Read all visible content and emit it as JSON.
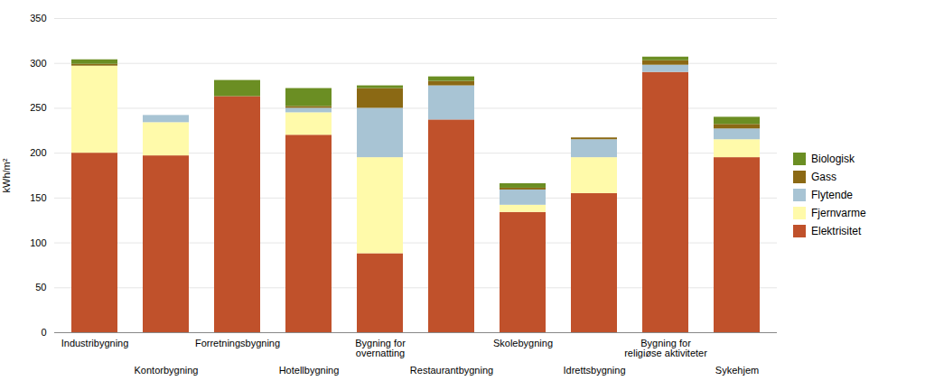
{
  "chart_data": {
    "type": "bar",
    "stacked": true,
    "ylabel": "kWh/m²",
    "categories": [
      "Industribygning",
      "Kontorbygning",
      "Forretningsbygning",
      "Hotellbygning",
      "Bygning for\novernatting",
      "Restaurantbygning",
      "Skolebygning",
      "Idrettsbygning",
      "Bygning for\nreligiøse aktiviteter",
      "Sykehjem"
    ],
    "series": [
      {
        "name": "Elektrisitet",
        "color": "#c0512b",
        "values": [
          200,
          197,
          263,
          220,
          88,
          237,
          134,
          155,
          290,
          195
        ]
      },
      {
        "name": "Fjernvarme",
        "color": "#fffaaa",
        "values": [
          97,
          37,
          0,
          25,
          107,
          0,
          8,
          40,
          0,
          20
        ]
      },
      {
        "name": "Flytende",
        "color": "#a8c4d4",
        "values": [
          0,
          8,
          0,
          5,
          55,
          38,
          17,
          20,
          8,
          12
        ]
      },
      {
        "name": "Gass",
        "color": "#8b6914",
        "values": [
          2,
          0,
          0,
          2,
          22,
          5,
          2,
          2,
          5,
          5
        ]
      },
      {
        "name": "Biologisk",
        "color": "#6b8e23",
        "values": [
          5,
          0,
          18,
          20,
          3,
          5,
          5,
          0,
          4,
          8
        ]
      }
    ],
    "ylim": [
      0,
      350
    ],
    "yticks": [
      0,
      50,
      100,
      150,
      200,
      250,
      300,
      350
    ],
    "grid": true,
    "legend": "right"
  }
}
